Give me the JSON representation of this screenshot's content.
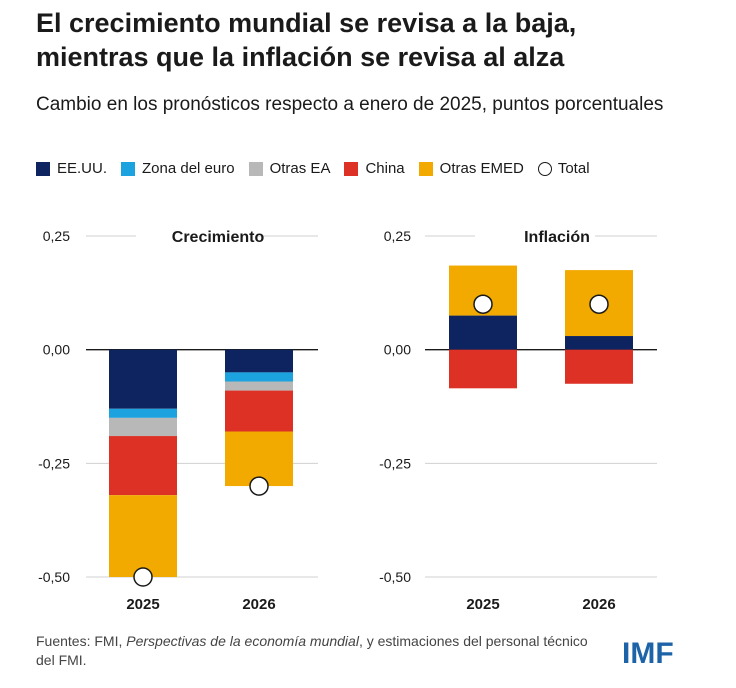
{
  "title": {
    "line1": "El crecimiento mundial se revisa a la baja,",
    "line2": "mientras que la inflación se revisa al alza"
  },
  "subtitle": "Cambio en los pronósticos respecto a enero de 2025, puntos porcentuales",
  "legend": [
    {
      "label": "EE.UU.",
      "color": "#0d2460",
      "shape": "square"
    },
    {
      "label": "Zona del euro",
      "color": "#1ca3df",
      "shape": "square"
    },
    {
      "label": "Otras EA",
      "color": "#b8b8b8",
      "shape": "square"
    },
    {
      "label": "China",
      "color": "#dd3125",
      "shape": "square"
    },
    {
      "label": "Otras EMED",
      "color": "#f2aa00",
      "shape": "square"
    },
    {
      "label": "Total",
      "color": "#ffffff",
      "shape": "circle"
    }
  ],
  "chart_data": [
    {
      "type": "bar",
      "stacked": true,
      "title": "Crecimiento",
      "categories": [
        "2025",
        "2026"
      ],
      "ylim": [
        -0.5,
        0.25
      ],
      "yticks": [
        "0,25",
        "0,00",
        "-0,25",
        "-0,50"
      ],
      "ytick_values": [
        0.25,
        0,
        -0.25,
        -0.5
      ],
      "series": [
        {
          "name": "EE.UU.",
          "color": "#0d2460",
          "values": [
            -0.13,
            -0.05
          ]
        },
        {
          "name": "Zona del euro",
          "color": "#1ca3df",
          "values": [
            -0.02,
            -0.02
          ]
        },
        {
          "name": "Otras EA",
          "color": "#b8b8b8",
          "values": [
            -0.04,
            -0.02
          ]
        },
        {
          "name": "China",
          "color": "#dd3125",
          "values": [
            -0.13,
            -0.09
          ]
        },
        {
          "name": "Otras EMED",
          "color": "#f2aa00",
          "values": [
            -0.18,
            -0.12
          ]
        }
      ],
      "total": {
        "name": "Total",
        "values": [
          -0.5,
          -0.3
        ]
      }
    },
    {
      "type": "bar",
      "stacked": true,
      "title": "Inflación",
      "categories": [
        "2025",
        "2026"
      ],
      "ylim": [
        -0.5,
        0.25
      ],
      "yticks": [
        "0,25",
        "0,00",
        "-0,25",
        "-0,50"
      ],
      "ytick_values": [
        0.25,
        0,
        -0.25,
        -0.5
      ],
      "series": [
        {
          "name": "EE.UU.",
          "color": "#0d2460",
          "values": [
            0.075,
            0.03
          ]
        },
        {
          "name": "Zona del euro",
          "color": "#1ca3df",
          "values": [
            0,
            0
          ]
        },
        {
          "name": "Otras EA",
          "color": "#b8b8b8",
          "values": [
            0,
            0
          ]
        },
        {
          "name": "China",
          "color": "#dd3125",
          "values": [
            -0.085,
            -0.075
          ]
        },
        {
          "name": "Otras EMED",
          "color": "#f2aa00",
          "values": [
            0.11,
            0.145
          ]
        }
      ],
      "total": {
        "name": "Total",
        "values": [
          0.1,
          0.1
        ]
      }
    }
  ],
  "source": {
    "prefix": "Fuentes: FMI, ",
    "italic": "Perspectivas de la economía mundial",
    "suffix": ", y estimaciones del personal técnico del FMI."
  },
  "logo": "IMF"
}
